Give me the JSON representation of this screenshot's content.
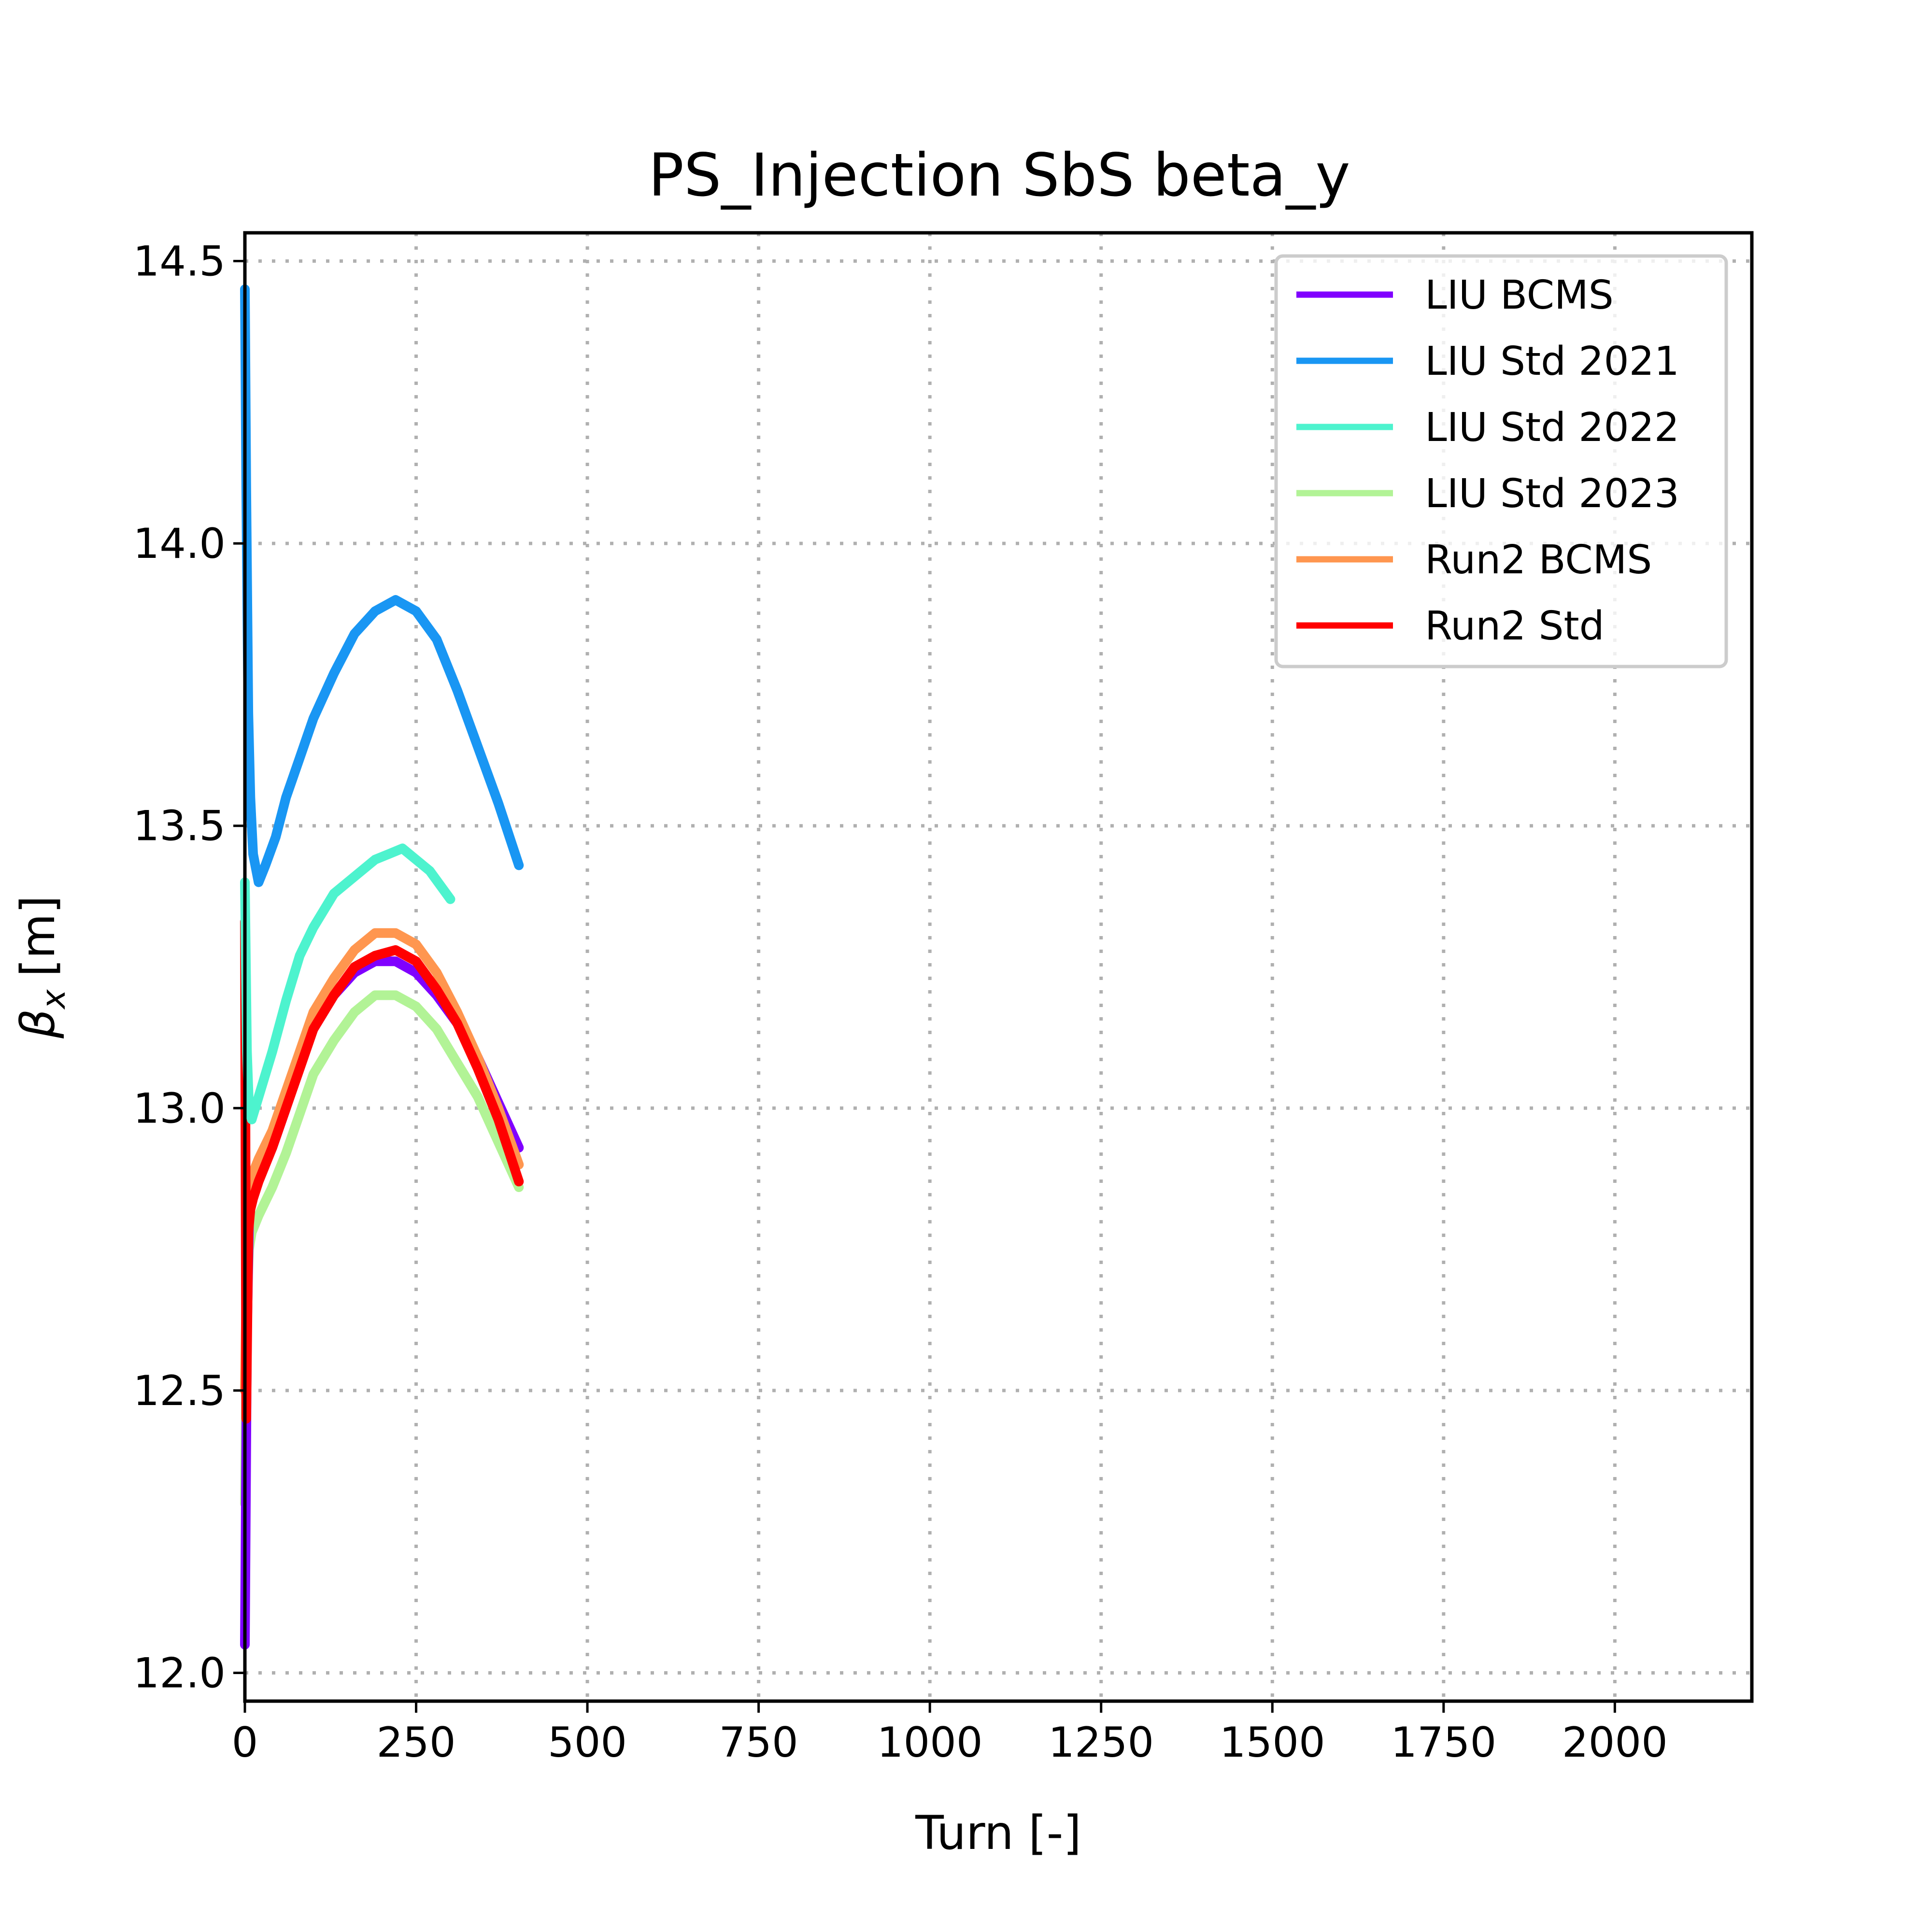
{
  "chart_data": {
    "type": "line",
    "title": "PS_Injection SbS beta_y",
    "xlabel": "Turn [-]",
    "ylabel": "β",
    "ylabel_sub": "x",
    "ylabel_unit": "[m]",
    "xlim": [
      0,
      2200
    ],
    "ylim": [
      11.95,
      14.55
    ],
    "xticks": [
      0,
      250,
      500,
      750,
      1000,
      1250,
      1500,
      1750,
      2000
    ],
    "yticks": [
      12.0,
      12.5,
      13.0,
      13.5,
      14.0,
      14.5
    ],
    "ytick_labels": [
      "12.0",
      "12.5",
      "13.0",
      "13.5",
      "14.0",
      "14.5"
    ],
    "grid": true,
    "legend_position": "top-right",
    "series": [
      {
        "name": "LIU BCMS",
        "color": "#8000ff",
        "x": [
          0,
          3,
          6,
          10,
          20,
          40,
          60,
          80,
          100,
          130,
          160,
          190,
          220,
          250,
          280,
          310,
          340,
          370,
          400
        ],
        "y": [
          12.05,
          12.6,
          12.8,
          12.85,
          12.88,
          12.93,
          13.0,
          13.08,
          13.14,
          13.2,
          13.24,
          13.26,
          13.26,
          13.24,
          13.2,
          13.15,
          13.09,
          13.01,
          12.93
        ]
      },
      {
        "name": "LIU Std 2021",
        "color": "#1996f3",
        "x": [
          0,
          2,
          5,
          8,
          12,
          20,
          30,
          45,
          60,
          80,
          100,
          130,
          160,
          190,
          220,
          250,
          280,
          310,
          340,
          370,
          400
        ],
        "y": [
          14.45,
          14.1,
          13.7,
          13.55,
          13.45,
          13.4,
          13.43,
          13.48,
          13.55,
          13.62,
          13.69,
          13.77,
          13.84,
          13.88,
          13.9,
          13.88,
          13.83,
          13.74,
          13.64,
          13.54,
          13.43
        ]
      },
      {
        "name": "LIU Std 2022",
        "color": "#4df3ce",
        "x": [
          0,
          3,
          6,
          10,
          20,
          40,
          60,
          80,
          100,
          130,
          160,
          190,
          210,
          230,
          250,
          270,
          300
        ],
        "y": [
          13.4,
          13.1,
          13.0,
          12.98,
          13.02,
          13.1,
          13.19,
          13.27,
          13.32,
          13.38,
          13.41,
          13.44,
          13.45,
          13.46,
          13.44,
          13.42,
          13.37
        ]
      },
      {
        "name": "LIU Std 2023",
        "color": "#b2f396",
        "x": [
          0,
          3,
          6,
          10,
          20,
          40,
          60,
          80,
          100,
          130,
          160,
          190,
          220,
          250,
          280,
          310,
          340,
          370,
          400
        ],
        "y": [
          12.3,
          12.65,
          12.75,
          12.78,
          12.81,
          12.86,
          12.92,
          12.99,
          13.06,
          13.12,
          13.17,
          13.2,
          13.2,
          13.18,
          13.14,
          13.08,
          13.02,
          12.94,
          12.86
        ]
      },
      {
        "name": "Run2 BCMS",
        "color": "#ff964f",
        "x": [
          0,
          3,
          6,
          10,
          20,
          40,
          60,
          80,
          100,
          130,
          160,
          190,
          220,
          250,
          280,
          310,
          340,
          370,
          400
        ],
        "y": [
          12.5,
          12.75,
          12.85,
          12.88,
          12.91,
          12.96,
          13.03,
          13.1,
          13.17,
          13.23,
          13.28,
          13.31,
          13.31,
          13.29,
          13.24,
          13.17,
          13.09,
          13.0,
          12.9
        ]
      },
      {
        "name": "Run2 Std",
        "color": "#ff0000",
        "x": [
          0,
          2,
          5,
          8,
          12,
          20,
          40,
          60,
          80,
          100,
          130,
          160,
          190,
          220,
          250,
          280,
          310,
          340,
          370,
          400
        ],
        "y": [
          13.33,
          12.45,
          12.78,
          12.82,
          12.84,
          12.87,
          12.93,
          13.0,
          13.07,
          13.14,
          13.2,
          13.25,
          13.27,
          13.28,
          13.26,
          13.21,
          13.15,
          13.07,
          12.98,
          12.87
        ]
      }
    ]
  }
}
